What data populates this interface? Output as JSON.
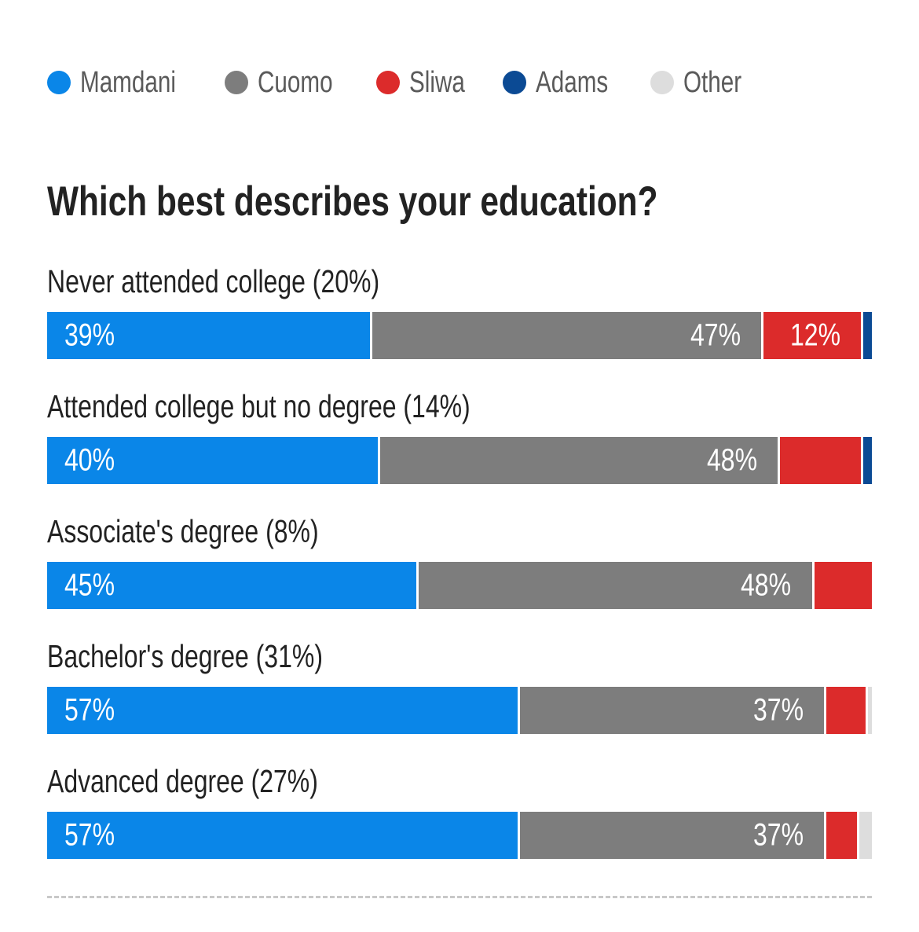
{
  "colors": {
    "Mamdani": "#0a86e8",
    "Cuomo": "#7d7d7d",
    "Sliwa": "#dc2b2b",
    "Adams": "#0b4a94",
    "Other": "#dddddd"
  },
  "legend": [
    "Mamdani",
    "Cuomo",
    "Sliwa",
    "Adams",
    "Other"
  ],
  "chart_data": {
    "type": "bar",
    "orientation": "horizontal",
    "stacked": true,
    "title": "Which best describes your education?",
    "legend_position": "top-left",
    "categories": [
      "Never attended college (20%)",
      "Attended college but no degree (14%)",
      "Associate's degree (8%)",
      "Bachelor's degree (31%)",
      "Advanced degree (27%)"
    ],
    "series": [
      {
        "name": "Mamdani",
        "values": [
          39,
          40,
          45,
          57,
          57
        ],
        "labels": [
          "39%",
          "40%",
          "45%",
          "57%",
          "57%"
        ]
      },
      {
        "name": "Cuomo",
        "values": [
          47,
          48,
          48,
          37,
          37
        ],
        "labels": [
          "47%",
          "48%",
          "48%",
          "37%",
          "37%"
        ]
      },
      {
        "name": "Sliwa",
        "values": [
          12,
          10,
          7,
          5,
          4
        ],
        "labels": [
          "12%",
          "",
          "",
          "",
          ""
        ]
      },
      {
        "name": "Adams",
        "values": [
          1,
          1,
          0,
          0,
          0
        ],
        "labels": [
          "",
          "",
          "",
          "",
          ""
        ]
      },
      {
        "name": "Other",
        "values": [
          0,
          0,
          0,
          0.5,
          1.5
        ],
        "labels": [
          "",
          "",
          "",
          "",
          ""
        ]
      }
    ]
  }
}
